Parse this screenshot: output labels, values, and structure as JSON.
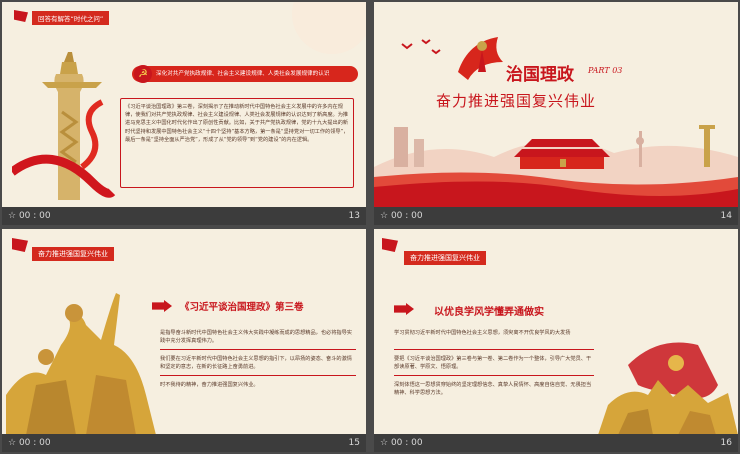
{
  "slides": [
    {
      "tag": "回答有解答“时代之问”",
      "banner": "深化对共产党执政规律、社会主义建设规律、人类社会发展规律的认识",
      "body": "《习近平谈治国理政》第三卷，深刻揭示了在推动新时代中国特色社会主义发展中的许多内在规律，使我们对共产党执政规律、社会主义建设规律、人类社会发展规律的认识达到了新高度。为推进马克思主义中国化时代化作出了原创性贡献。比如，关于共产党执政规律，党的十九大提出的新时代坚持和发展中国特色社会主义“十四个坚持”基本方略，第一条是“坚持党对一切工作的领导”，最后一条是“坚持全面从严治党”，形成了从“党的领导”到“党的建设”的内在逻辑。",
      "time": "00 : 00",
      "num": "13"
    },
    {
      "title": "治国理政",
      "part": "PART 03",
      "subtitle": "奋力推进强国复兴伟业",
      "time": "00 : 00",
      "num": "14"
    },
    {
      "tag": "奋力推进强国复兴伟业",
      "heading": "《习近平谈治国理政》第三卷",
      "p1": "是指导奋斗新时代中国特色社会主义伟大实践中凝练而成的思想精品，也必将指导实践中充分发挥真理伟力。",
      "p2": "我们要在习近平新时代中国特色社会主义思想的指引下，以昂扬的姿态、奋斗的激情和坚定的意志，在新的长征路上奋勇前进。",
      "p3": "时不我待的精神，奋力推进强国复兴伟业。",
      "time": "00 : 00",
      "num": "15"
    },
    {
      "tag": "奋力推进强国复兴伟业",
      "heading": "以优良学风学懂弄通做实",
      "p1": "学习贯彻习近平新时代中国特色社会主义思想，须臾离不开优良学风的大发扬",
      "p2": "要把《习近平谈治国理政》第三卷与第一卷、第二卷作为一个整体，引导广大党员、干部读原著、学原文、悟原理。",
      "p3": "深刻体悟这一思想贯穿始终的坚定理想信念、真挚人民情怀、高度自信自觉、无畏担当精神、科学思想方法。",
      "time": "00 : 00",
      "num": "16"
    }
  ],
  "colors": {
    "accent_red": "#c8161d",
    "gold": "#c9a24a",
    "slide_bg": "#f6efe0"
  }
}
